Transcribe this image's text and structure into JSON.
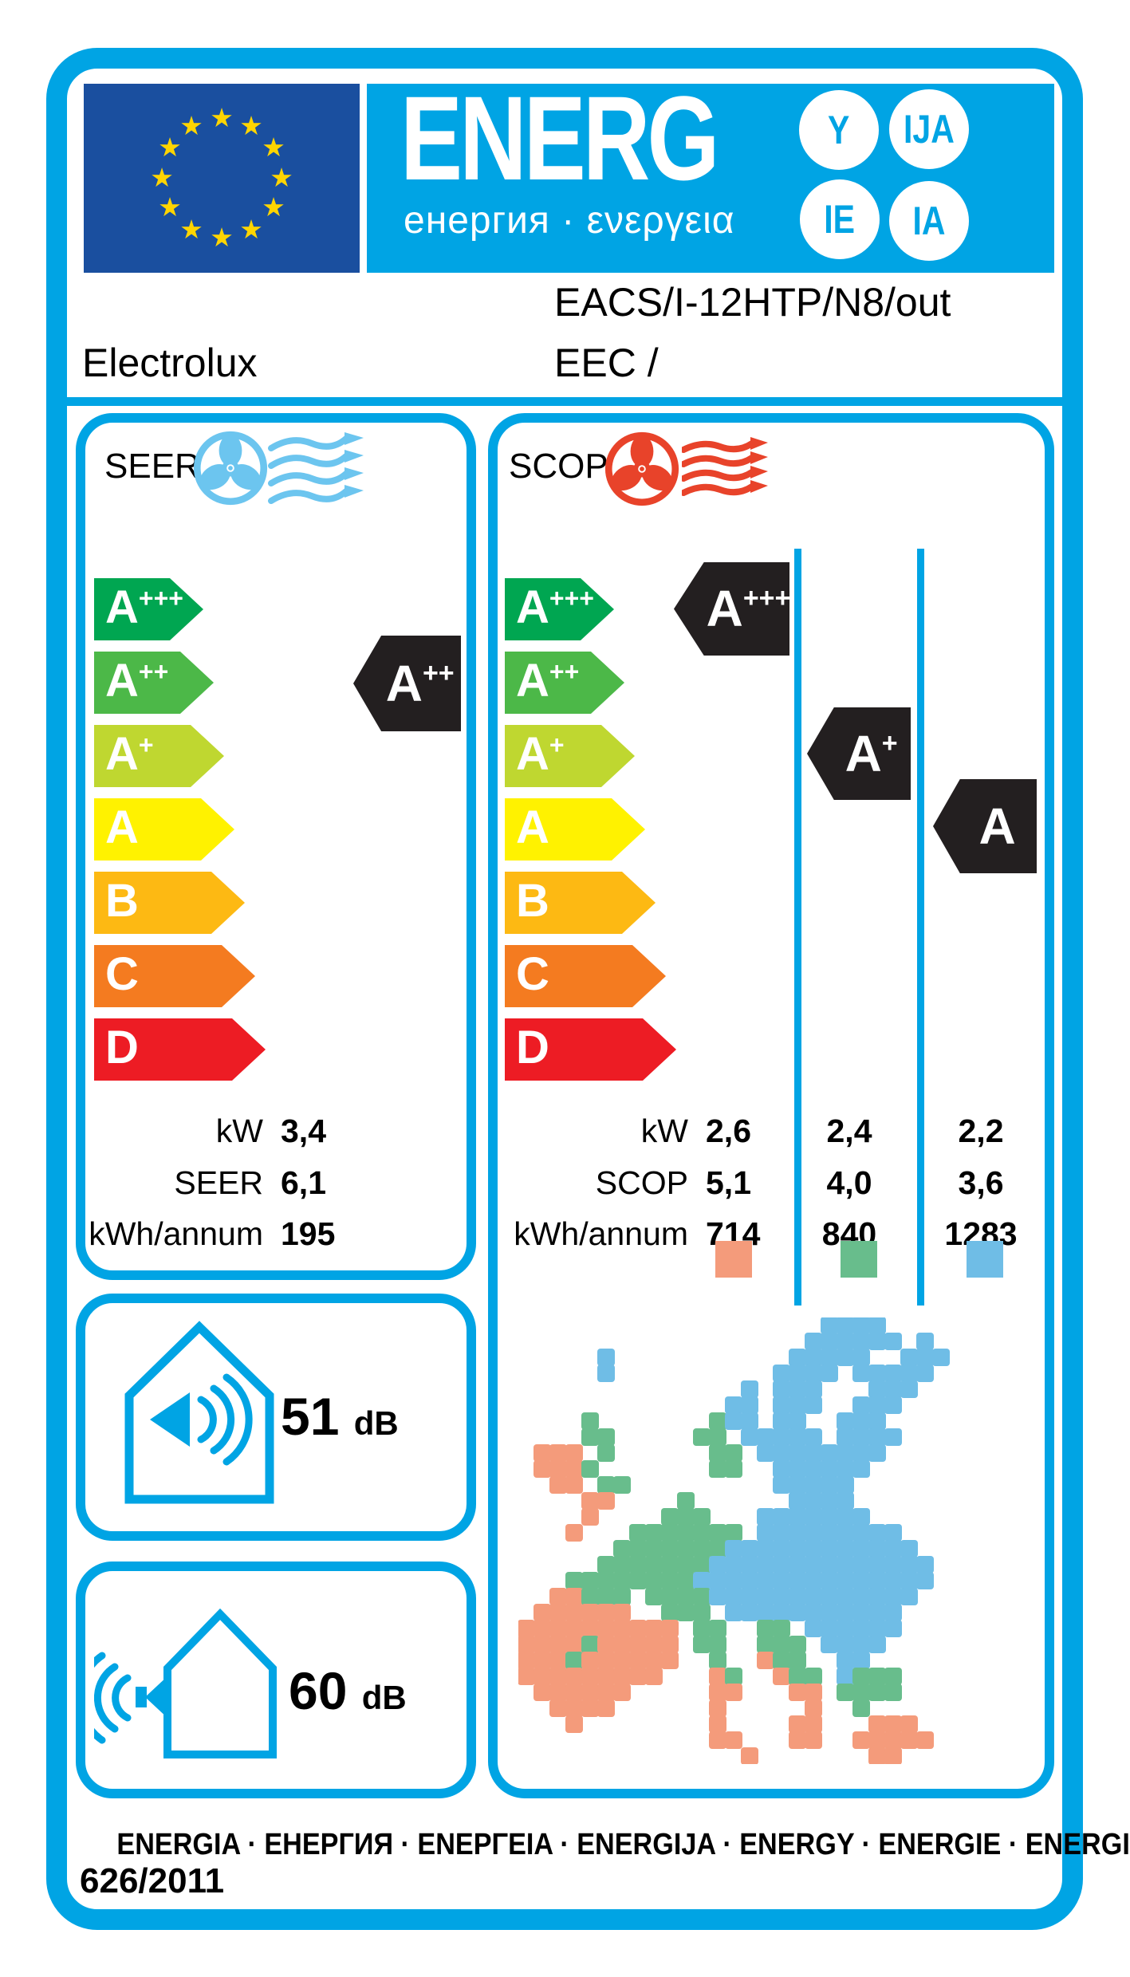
{
  "title_block": {
    "logo_word": "ENERG",
    "logo_subtext": "енергия · ενεργεια",
    "suffixes": [
      "Y",
      "IJA",
      "IE",
      "IA"
    ],
    "brand": "Electrolux",
    "model_line1": "EACS/I-12HTP/N8/out",
    "model_line2": "EEC /"
  },
  "scale": [
    {
      "letter": "A",
      "sup": "+++",
      "color": "#00a651"
    },
    {
      "letter": "A",
      "sup": "++",
      "color": "#4cb848"
    },
    {
      "letter": "A",
      "sup": "+",
      "color": "#bfd730"
    },
    {
      "letter": "A",
      "sup": "",
      "color": "#fff200"
    },
    {
      "letter": "B",
      "sup": "",
      "color": "#fdb913"
    },
    {
      "letter": "C",
      "sup": "",
      "color": "#f47b20"
    },
    {
      "letter": "D",
      "sup": "",
      "color": "#ed1c24"
    }
  ],
  "seer": {
    "label": "SEER",
    "indicator": {
      "letter": "A",
      "sup": "++"
    },
    "metrics": [
      {
        "label": "kW",
        "value": "3,4"
      },
      {
        "label": "SEER",
        "value": "6,1"
      },
      {
        "label": "kWh/annum",
        "value": "195"
      }
    ]
  },
  "scop": {
    "label": "SCOP",
    "row_labels": [
      "kW",
      "SCOP",
      "kWh/annum"
    ],
    "columns": [
      {
        "indicator": {
          "letter": "A",
          "sup": "+++"
        },
        "kw": "2,6",
        "scop": "5,1",
        "kwh": "714",
        "swatch": "#f49b7b"
      },
      {
        "indicator": {
          "letter": "A",
          "sup": "+"
        },
        "kw": "2,4",
        "scop": "4,0",
        "kwh": "840",
        "swatch": "#68bd8c"
      },
      {
        "indicator": {
          "letter": "A",
          "sup": ""
        },
        "kw": "2,2",
        "scop": "3,6",
        "kwh": "1283",
        "swatch": "#6fbde6"
      }
    ]
  },
  "noise": {
    "indoor": {
      "value": "51",
      "unit": "dB"
    },
    "outdoor": {
      "value": "60",
      "unit": "dB"
    }
  },
  "footer": {
    "languages": "ENERGIA · ЕНЕРГИЯ · ENEPΓEIA · ENERGIJA · ENERGY · ENERGIE · ENERGI",
    "regulation": "626/2011"
  },
  "colors": {
    "accent": "#00a4e4",
    "eu_blue": "#1a4f9f",
    "star_yellow": "#ffd500",
    "black_arrow": "#231f20",
    "seer_fan": "#6cc5ef",
    "scop_fan": "#e8432a"
  },
  "map": {
    "cell": 20,
    "colors": {
      "b": "#6fbde6",
      "g": "#68bd8c",
      "s": "#f49b7b"
    },
    "grid": [
      "...................bbbb.........",
      "..................bbbbbb.b......",
      ".....b...........bbbbb..bbb.....",
      ".....b..........bbbb.bbbbb......",
      "..............b.bbb...bbb.......",
      ".............bb.bbb..bbb........",
      "....g.......gbb.bb..bbb.........",
      "....gg.....gg.bbbbb.bbbb........",
      ".sss.g......gg.bbbbbbbb.........",
      ".sssg.......gg..bbbbbb..........",
      "..ss.gg.........bbbbb...........",
      "....ss....g......bbbb...........",
      "....s....ggg...bbbbbbb..........",
      "...s...ggggggg.bbbbbbbbb........",
      "......gggggggbbbbbbbbbbbb.......",
      ".....gggggggbbbbbbbbbbbbbb......",
      "...ggggggggbbbbbbbbbbbbbbb......",
      "..ssggg.ggggbbbbbbbbbbbbb.......",
      ".ssssss..ggg.bbbbbbbbbbb........",
      "ssssssssss.gg..gg.bbbbbb........",
      "ssssgsssss.gg..ggg.bbbb.........",
      "sssgssssss..g..sgg..bb..........",
      "sssssssss...sg..sgg.bggg........",
      ".ssssss.....ss...ss.gggg........",
      "..ssss......s.....s..g..........",
      "...s........s....ss...sss.......",
      "............ss...ss..sssss......",
      "..............s.......ss........"
    ]
  }
}
